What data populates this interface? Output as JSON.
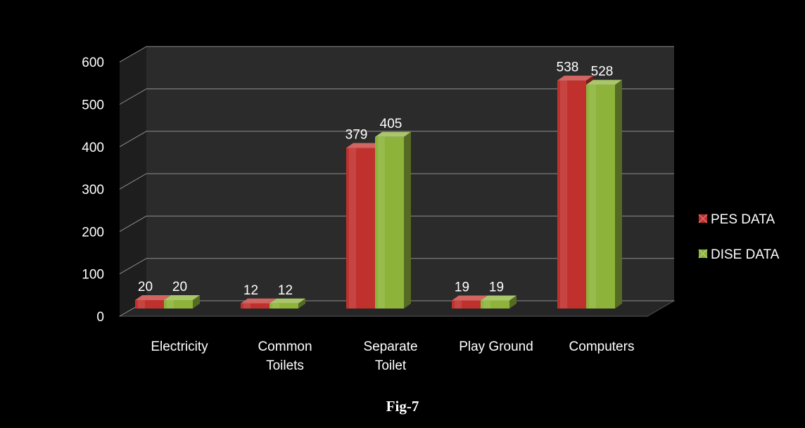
{
  "caption": "Fig-7",
  "colors": {
    "background": "#000000",
    "wall": "#2b2b2b",
    "gridline": "#8c8c8c",
    "pes": "#c0312e",
    "dise": "#8db33a"
  },
  "chart_data": {
    "type": "bar",
    "title": "",
    "xlabel": "",
    "ylabel": "",
    "ylim": [
      0,
      600
    ],
    "yticks": [
      0,
      100,
      200,
      300,
      400,
      500,
      600
    ],
    "grid": true,
    "legend_position": "right",
    "categories": [
      [
        "Electricity"
      ],
      [
        "Common",
        "Toilets"
      ],
      [
        "Separate",
        "Toilet"
      ],
      [
        "Play Ground"
      ],
      [
        "Computers"
      ]
    ],
    "series": [
      {
        "name": "PES DATA",
        "color": "#c0312e",
        "values": [
          20,
          12,
          379,
          19,
          538
        ]
      },
      {
        "name": "DISE DATA",
        "color": "#8db33a",
        "values": [
          20,
          12,
          405,
          19,
          528
        ]
      }
    ]
  }
}
